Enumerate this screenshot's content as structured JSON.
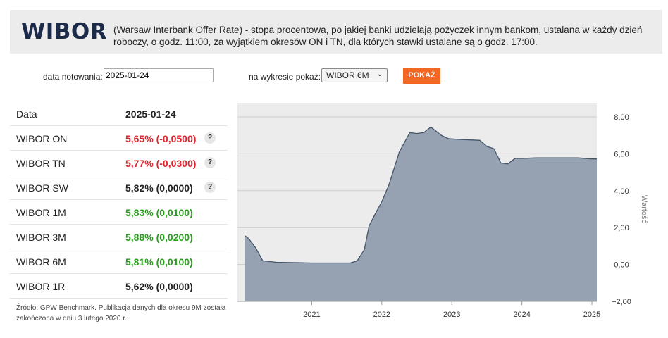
{
  "header": {
    "logo": "WIBOR",
    "description": "(Warsaw Interbank Offer Rate) - stopa procentowa, po jakiej banki udzielają pożyczek innym bankom, ustalana w każdy dzień roboczy, o godz. 11:00, za wyjątkiem okresów ON i TN, dla których stawki ustalane są o godz. 17:00."
  },
  "form": {
    "date_label": "data notowania:",
    "date_value": "2025-01-24",
    "show_label": "na wykresie pokaż:",
    "select_value": "WIBOR 6M",
    "button_label": "POKAŻ"
  },
  "table": {
    "head_label": "Data",
    "head_value": "2025-01-24",
    "rows": [
      {
        "name": "WIBOR ON",
        "value": "5,65% (-0,0500)",
        "status": "down",
        "help": "?"
      },
      {
        "name": "WIBOR TN",
        "value": "5,77% (-0,0300)",
        "status": "down",
        "help": "?"
      },
      {
        "name": "WIBOR SW",
        "value": "5,82% (0,0000)",
        "status": "flat",
        "help": "?"
      },
      {
        "name": "WIBOR 1M",
        "value": "5,83% (0,0100)",
        "status": "up"
      },
      {
        "name": "WIBOR 3M",
        "value": "5,88% (0,0200)",
        "status": "up"
      },
      {
        "name": "WIBOR 6M",
        "value": "5,81% (0,0100)",
        "status": "up"
      },
      {
        "name": "WIBOR 1R",
        "value": "5,62% (0,0000)",
        "status": "flat"
      }
    ]
  },
  "source_note": "Źródło: GPW Benchmark. Publikacja danych dla okresu 9M została zakończona w dniu 3 lutego 2020 r.",
  "colors": {
    "down": "#e0242e",
    "up": "#2a9d1f",
    "flat": "#222222",
    "accent": "#f26722",
    "area": "#96a2b2"
  },
  "chart_data": {
    "type": "area",
    "ylabel": "Wartość",
    "ylim": [
      -2,
      8
    ],
    "xlim": [
      2020.05,
      2025.07
    ],
    "y_ticks": [
      8,
      6,
      4,
      2,
      0,
      -2
    ],
    "y_tick_labels": [
      "8,00",
      "6,00",
      "4,00",
      "2,00",
      "0,00",
      "−2,00"
    ],
    "x_ticks": [
      2021,
      2022,
      2023,
      2024,
      2025
    ],
    "x_tick_labels": [
      "2021",
      "2022",
      "2023",
      "2024",
      "2025"
    ],
    "series": [
      {
        "x": [
          2020.05,
          2020.1,
          2020.2,
          2020.3,
          2020.5,
          2020.8,
          2021.0,
          2021.3,
          2021.55,
          2021.65,
          2021.75,
          2021.82,
          2021.9,
          2022.0,
          2022.1,
          2022.25,
          2022.4,
          2022.5,
          2022.6,
          2022.7,
          2022.75,
          2022.85,
          2022.95,
          2023.1,
          2023.3,
          2023.4,
          2023.5,
          2023.6,
          2023.7,
          2023.8,
          2023.9,
          2024.0,
          2024.2,
          2024.5,
          2024.8,
          2025.0,
          2025.07
        ],
        "y": [
          1.55,
          1.4,
          0.9,
          0.2,
          0.12,
          0.1,
          0.08,
          0.08,
          0.08,
          0.2,
          0.8,
          2.1,
          2.7,
          3.4,
          4.3,
          6.1,
          7.15,
          7.1,
          7.15,
          7.45,
          7.3,
          7.0,
          6.82,
          6.78,
          6.75,
          6.73,
          6.4,
          6.28,
          5.5,
          5.45,
          5.75,
          5.75,
          5.78,
          5.78,
          5.78,
          5.72,
          5.72
        ]
      }
    ]
  }
}
